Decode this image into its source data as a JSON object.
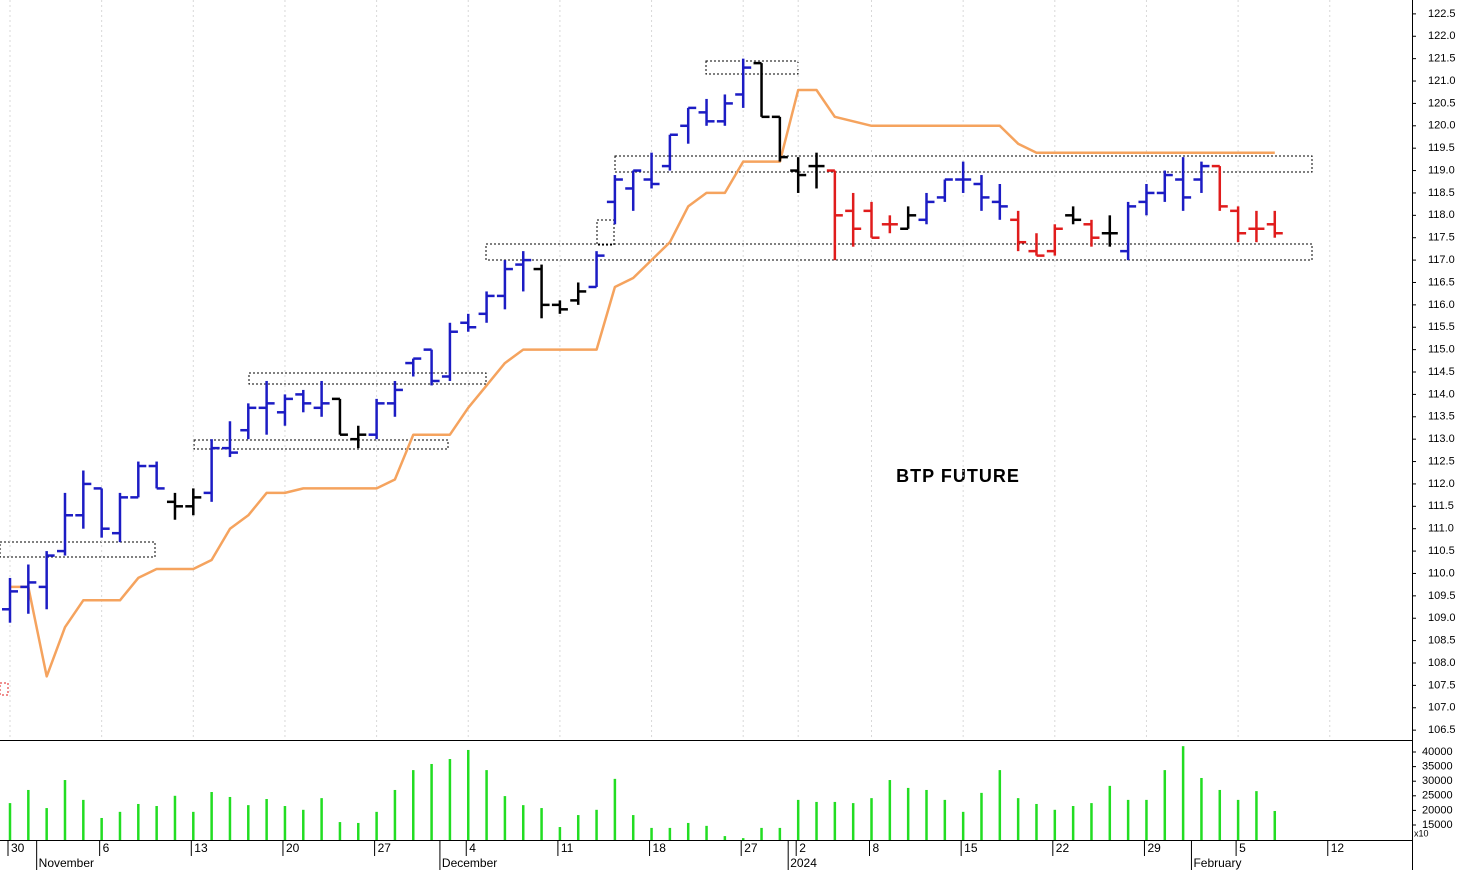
{
  "chart_data": [
    {
      "type": "ohlc",
      "title": "BTP FUTURE",
      "categories": [
        "30",
        null,
        null,
        null,
        null,
        "6",
        null,
        null,
        null,
        null,
        "13",
        null,
        null,
        null,
        null,
        "20",
        null,
        null,
        null,
        null,
        "27",
        null,
        null,
        null,
        null,
        "4",
        null,
        null,
        null,
        null,
        "11",
        null,
        null,
        null,
        null,
        "18",
        null,
        null,
        null,
        null,
        "27",
        null,
        null,
        "2",
        null,
        null,
        null,
        "8",
        null,
        null,
        null,
        null,
        "15",
        null,
        null,
        null,
        null,
        "22",
        null,
        null,
        null,
        null,
        "29",
        null,
        null,
        null,
        null,
        "5",
        null,
        null,
        null,
        null,
        "12"
      ],
      "month_labels": [
        null,
        null,
        "November",
        null,
        null,
        null,
        null,
        null,
        null,
        null,
        null,
        null,
        null,
        null,
        null,
        null,
        null,
        null,
        null,
        null,
        null,
        null,
        null,
        null,
        "December",
        null,
        null,
        null,
        null,
        null,
        null,
        null,
        null,
        null,
        null,
        null,
        null,
        null,
        null,
        null,
        null,
        null,
        null,
        "2024",
        null,
        null,
        null,
        null,
        null,
        null,
        null,
        null,
        null,
        null,
        null,
        null,
        null,
        null,
        null,
        null,
        null,
        null,
        null,
        null,
        null,
        "February",
        null,
        null,
        null,
        null,
        null,
        null,
        null
      ],
      "series": [
        {
          "open": [
            109.2,
            109.7,
            109.7,
            110.5,
            111.3,
            111.9,
            110.9,
            111.7,
            112.4,
            111.6,
            111.5,
            111.8,
            112.8,
            113.2,
            113.7,
            113.6,
            114.0,
            113.7,
            113.9,
            113.0,
            113.1,
            113.8,
            114.7,
            115.0,
            114.4,
            115.6,
            115.8,
            116.2,
            116.9,
            116.8,
            116.0,
            116.1,
            116.4,
            118.3,
            118.6,
            118.8,
            119.1,
            120.0,
            120.3,
            120.1,
            120.7,
            121.4,
            120.2,
            119.0,
            119.1,
            119.0,
            118.1,
            118.1,
            117.8,
            117.7,
            117.9,
            118.4,
            118.8,
            118.7,
            118.3,
            117.9,
            117.2,
            117.2,
            118.0,
            117.8,
            117.6,
            117.2,
            118.3,
            118.5,
            118.8,
            118.8,
            119.1,
            118.1,
            117.7,
            117.8,
            null,
            null,
            null
          ],
          "high": [
            109.9,
            110.2,
            110.5,
            111.8,
            112.3,
            111.9,
            111.8,
            112.5,
            112.5,
            111.8,
            111.9,
            113.0,
            113.4,
            113.8,
            114.3,
            114.0,
            114.1,
            114.3,
            113.9,
            113.3,
            113.9,
            114.3,
            114.8,
            115.0,
            115.6,
            115.8,
            116.3,
            117.0,
            117.2,
            116.9,
            116.1,
            116.5,
            117.2,
            118.9,
            119.0,
            119.4,
            119.8,
            120.4,
            120.6,
            120.7,
            121.5,
            121.4,
            120.2,
            119.3,
            119.4,
            119.0,
            118.5,
            118.3,
            118.0,
            118.2,
            118.5,
            118.8,
            119.2,
            118.9,
            118.7,
            118.1,
            117.6,
            117.8,
            118.2,
            117.9,
            118.0,
            118.3,
            118.7,
            119.0,
            119.3,
            119.2,
            119.1,
            118.2,
            118.1,
            118.1,
            null,
            null,
            null
          ],
          "low": [
            108.9,
            109.1,
            109.2,
            110.4,
            111.0,
            110.8,
            110.7,
            111.7,
            111.9,
            111.2,
            111.3,
            111.6,
            112.6,
            113.0,
            113.1,
            113.3,
            113.6,
            113.5,
            113.1,
            112.8,
            113.0,
            113.5,
            114.4,
            114.2,
            114.3,
            115.4,
            115.6,
            115.9,
            116.3,
            115.7,
            115.8,
            116.0,
            116.4,
            117.8,
            118.1,
            118.6,
            119.0,
            119.6,
            120.0,
            120.0,
            120.4,
            120.2,
            119.2,
            118.5,
            118.6,
            117.0,
            117.3,
            117.5,
            117.6,
            117.7,
            117.8,
            118.3,
            118.5,
            118.1,
            117.9,
            117.2,
            117.1,
            117.1,
            117.8,
            117.3,
            117.3,
            117.0,
            118.0,
            118.3,
            118.1,
            118.5,
            118.1,
            117.4,
            117.4,
            117.5,
            null,
            null,
            null
          ],
          "close": [
            109.6,
            109.8,
            110.4,
            111.3,
            112.0,
            111.0,
            111.7,
            112.4,
            111.9,
            111.5,
            111.7,
            112.8,
            112.7,
            113.7,
            113.8,
            113.9,
            113.8,
            113.8,
            113.1,
            113.1,
            113.8,
            114.1,
            114.8,
            114.3,
            115.4,
            115.5,
            116.2,
            116.8,
            117.0,
            116.0,
            115.9,
            116.3,
            117.1,
            118.8,
            119.0,
            118.7,
            119.8,
            120.4,
            120.1,
            120.5,
            121.3,
            120.2,
            119.3,
            118.9,
            119.1,
            118.0,
            117.7,
            117.5,
            117.8,
            118.0,
            118.3,
            118.8,
            118.8,
            118.4,
            118.2,
            117.4,
            117.1,
            117.7,
            117.9,
            117.5,
            117.6,
            118.2,
            118.5,
            118.9,
            118.4,
            119.1,
            118.2,
            117.6,
            117.7,
            117.6,
            null,
            null,
            null
          ],
          "colors": [
            "#1c1cc4",
            "#1c1cc4",
            "#1c1cc4",
            "#1c1cc4",
            "#1c1cc4",
            "#1c1cc4",
            "#1c1cc4",
            "#1c1cc4",
            "#1c1cc4",
            "#000000",
            "#000000",
            "#1c1cc4",
            "#1c1cc4",
            "#1c1cc4",
            "#1c1cc4",
            "#1c1cc4",
            "#1c1cc4",
            "#1c1cc4",
            "#000000",
            "#000000",
            "#1c1cc4",
            "#1c1cc4",
            "#1c1cc4",
            "#1c1cc4",
            "#1c1cc4",
            "#1c1cc4",
            "#1c1cc4",
            "#1c1cc4",
            "#1c1cc4",
            "#000000",
            "#000000",
            "#000000",
            "#1c1cc4",
            "#1c1cc4",
            "#1c1cc4",
            "#1c1cc4",
            "#1c1cc4",
            "#1c1cc4",
            "#1c1cc4",
            "#1c1cc4",
            "#1c1cc4",
            "#000000",
            "#000000",
            "#000000",
            "#000000",
            "#e01c1c",
            "#e01c1c",
            "#e01c1c",
            "#e01c1c",
            "#000000",
            "#1c1cc4",
            "#1c1cc4",
            "#1c1cc4",
            "#1c1cc4",
            "#1c1cc4",
            "#e01c1c",
            "#e01c1c",
            "#e01c1c",
            "#000000",
            "#e01c1c",
            "#000000",
            "#1c1cc4",
            "#1c1cc4",
            "#1c1cc4",
            "#1c1cc4",
            "#1c1cc4",
            "#e01c1c",
            "#e01c1c",
            "#e01c1c",
            "#e01c1c",
            null,
            null,
            null
          ]
        },
        {
          "type": "line",
          "color": "#f5a35e",
          "values": [
            109.7,
            109.7,
            107.7,
            108.8,
            109.4,
            109.4,
            109.4,
            109.9,
            110.1,
            110.1,
            110.1,
            110.3,
            111.0,
            111.3,
            111.8,
            111.8,
            111.9,
            111.9,
            111.9,
            111.9,
            111.9,
            112.1,
            113.1,
            113.1,
            113.1,
            113.7,
            114.2,
            114.7,
            115.0,
            115.0,
            115.0,
            115.0,
            115.0,
            116.4,
            116.6,
            117.0,
            117.4,
            118.2,
            118.5,
            118.5,
            119.2,
            119.2,
            119.2,
            120.8,
            120.8,
            120.2,
            120.1,
            120.0,
            120.0,
            120.0,
            120.0,
            120.0,
            120.0,
            120.0,
            120.0,
            119.6,
            119.4,
            119.4,
            119.4,
            119.4,
            119.4,
            119.4,
            119.4,
            119.4,
            119.4,
            119.4,
            119.4,
            119.4,
            119.4,
            119.4,
            null,
            null,
            null
          ]
        }
      ],
      "ylim": [
        106.28,
        122.81
      ],
      "yticks": [
        106.5,
        {
          "value": 107,
          "label": "107.0"
        },
        107.5,
        {
          "value": 108,
          "label": "108.0"
        },
        108.5,
        {
          "value": 109,
          "label": "109.0"
        },
        109.5,
        {
          "value": 110,
          "label": "110.0"
        },
        110.5,
        {
          "value": 111,
          "label": "111.0"
        },
        111.5,
        {
          "value": 112,
          "label": "112.0"
        },
        112.5,
        {
          "value": 113,
          "label": "113.0"
        },
        113.5,
        {
          "value": 114,
          "label": "114.0"
        },
        114.5,
        {
          "value": 115,
          "label": "115.0"
        },
        115.5,
        {
          "value": 116,
          "label": "116.0"
        },
        116.5,
        {
          "value": 117,
          "label": "117.0"
        },
        117.5,
        {
          "value": 118,
          "label": "118.0"
        },
        118.5,
        {
          "value": 119,
          "label": "119.0"
        },
        119.5,
        {
          "value": 120,
          "label": "120.0"
        },
        120.5,
        {
          "value": 121,
          "label": "121.0"
        },
        121.5,
        {
          "value": 122,
          "label": "122.0"
        },
        122.5
      ],
      "grid": true
    },
    {
      "type": "bar",
      "color": "#22dd22",
      "unit_label": "x10",
      "values": [
        22500,
        27000,
        20800,
        30400,
        23600,
        17400,
        19500,
        22200,
        21500,
        25000,
        19500,
        26300,
        24600,
        21800,
        23900,
        21500,
        20200,
        24200,
        16000,
        15700,
        19500,
        27000,
        33800,
        35900,
        37600,
        40700,
        33800,
        24900,
        21800,
        20800,
        14300,
        18400,
        20200,
        30800,
        18400,
        14000,
        14000,
        15700,
        14700,
        11200,
        10500,
        14000,
        14000,
        23600,
        22900,
        22900,
        22500,
        24200,
        30400,
        27700,
        27000,
        23600,
        19500,
        26000,
        33800,
        24200,
        22200,
        20200,
        21500,
        22500,
        28400,
        23600,
        23600,
        33800,
        42000,
        31100,
        27000,
        23600,
        26600,
        19800,
        null,
        null,
        null
      ],
      "ylim": [
        9860,
        43770
      ],
      "yticks": [
        15000,
        20000,
        25000,
        30000,
        35000,
        40000
      ]
    }
  ]
}
